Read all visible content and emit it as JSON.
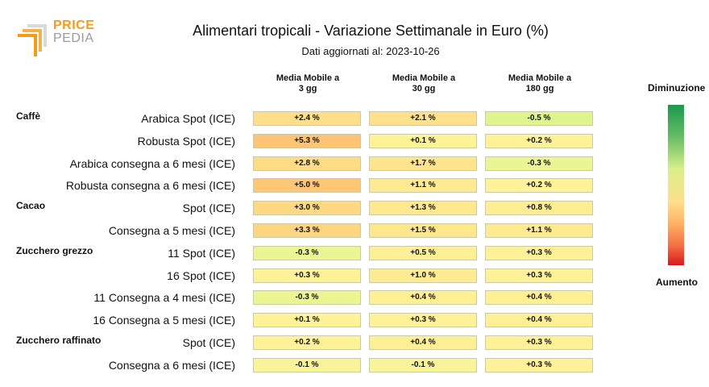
{
  "logo": {
    "line1": "PRICE",
    "line2": "PEDIA"
  },
  "chart_data": {
    "type": "table",
    "title": "Alimentari tropicali - Variazione Settimanale in Euro (%)",
    "subtitle": "Dati aggiornati al: 2023-10-26",
    "columns": [
      {
        "line1": "Media Mobile a",
        "line2": "3 gg"
      },
      {
        "line1": "Media Mobile a",
        "line2": "30 gg"
      },
      {
        "line1": "Media Mobile a",
        "line2": "180 gg"
      }
    ],
    "groups": [
      {
        "name": "Caffè",
        "rows": [
          {
            "label": "Arabica Spot (ICE)",
            "values": [
              2.4,
              2.1,
              -0.5
            ],
            "texts": [
              "+2.4 %",
              "+2.1 %",
              "-0.5 %"
            ]
          },
          {
            "label": "Robusta Spot (ICE)",
            "values": [
              5.3,
              0.1,
              0.2
            ],
            "texts": [
              "+5.3 %",
              "+0.1 %",
              "+0.2 %"
            ]
          },
          {
            "label": "Arabica consegna a 6 mesi (ICE)",
            "values": [
              2.8,
              1.7,
              -0.3
            ],
            "texts": [
              "+2.8 %",
              "+1.7 %",
              "-0.3 %"
            ]
          },
          {
            "label": "Robusta consegna a 6 mesi (ICE)",
            "values": [
              5.0,
              1.1,
              0.2
            ],
            "texts": [
              "+5.0 %",
              "+1.1 %",
              "+0.2 %"
            ]
          }
        ]
      },
      {
        "name": "Cacao",
        "rows": [
          {
            "label": "Spot (ICE)",
            "values": [
              3.0,
              1.3,
              0.8
            ],
            "texts": [
              "+3.0 %",
              "+1.3 %",
              "+0.8 %"
            ]
          },
          {
            "label": "Consegna a 5 mesi (ICE)",
            "values": [
              3.3,
              1.5,
              1.1
            ],
            "texts": [
              "+3.3 %",
              "+1.5 %",
              "+1.1 %"
            ]
          }
        ]
      },
      {
        "name": "Zucchero grezzo",
        "rows": [
          {
            "label": "11 Spot (ICE)",
            "values": [
              -0.3,
              0.5,
              0.3
            ],
            "texts": [
              "-0.3 %",
              "+0.5 %",
              "+0.3 %"
            ]
          },
          {
            "label": "16 Spot (ICE)",
            "values": [
              0.3,
              1.0,
              0.3
            ],
            "texts": [
              "+0.3 %",
              "+1.0 %",
              "+0.3 %"
            ]
          },
          {
            "label": "11 Consegna a 4 mesi (ICE)",
            "values": [
              -0.3,
              0.4,
              0.4
            ],
            "texts": [
              "-0.3 %",
              "+0.4 %",
              "+0.4 %"
            ]
          },
          {
            "label": "16 Consegna a 5 mesi (ICE)",
            "values": [
              0.1,
              0.3,
              0.4
            ],
            "texts": [
              "+0.1 %",
              "+0.3 %",
              "+0.4 %"
            ]
          }
        ]
      },
      {
        "name": "Zucchero raffinato",
        "rows": [
          {
            "label": "Spot (ICE)",
            "values": [
              0.2,
              0.4,
              0.3
            ],
            "texts": [
              "+0.2 %",
              "+0.4 %",
              "+0.3 %"
            ]
          },
          {
            "label": "Consegna a 6 mesi (ICE)",
            "values": [
              -0.1,
              -0.1,
              0.3
            ],
            "texts": [
              "-0.1 %",
              "-0.1 %",
              "+0.3 %"
            ]
          }
        ]
      }
    ],
    "legend": {
      "top": "Diminuzione",
      "bottom": "Aumento"
    },
    "colors": {
      "decrease": "#1a9850",
      "neutral": "#fff59a",
      "increase": "#d7191c"
    }
  }
}
